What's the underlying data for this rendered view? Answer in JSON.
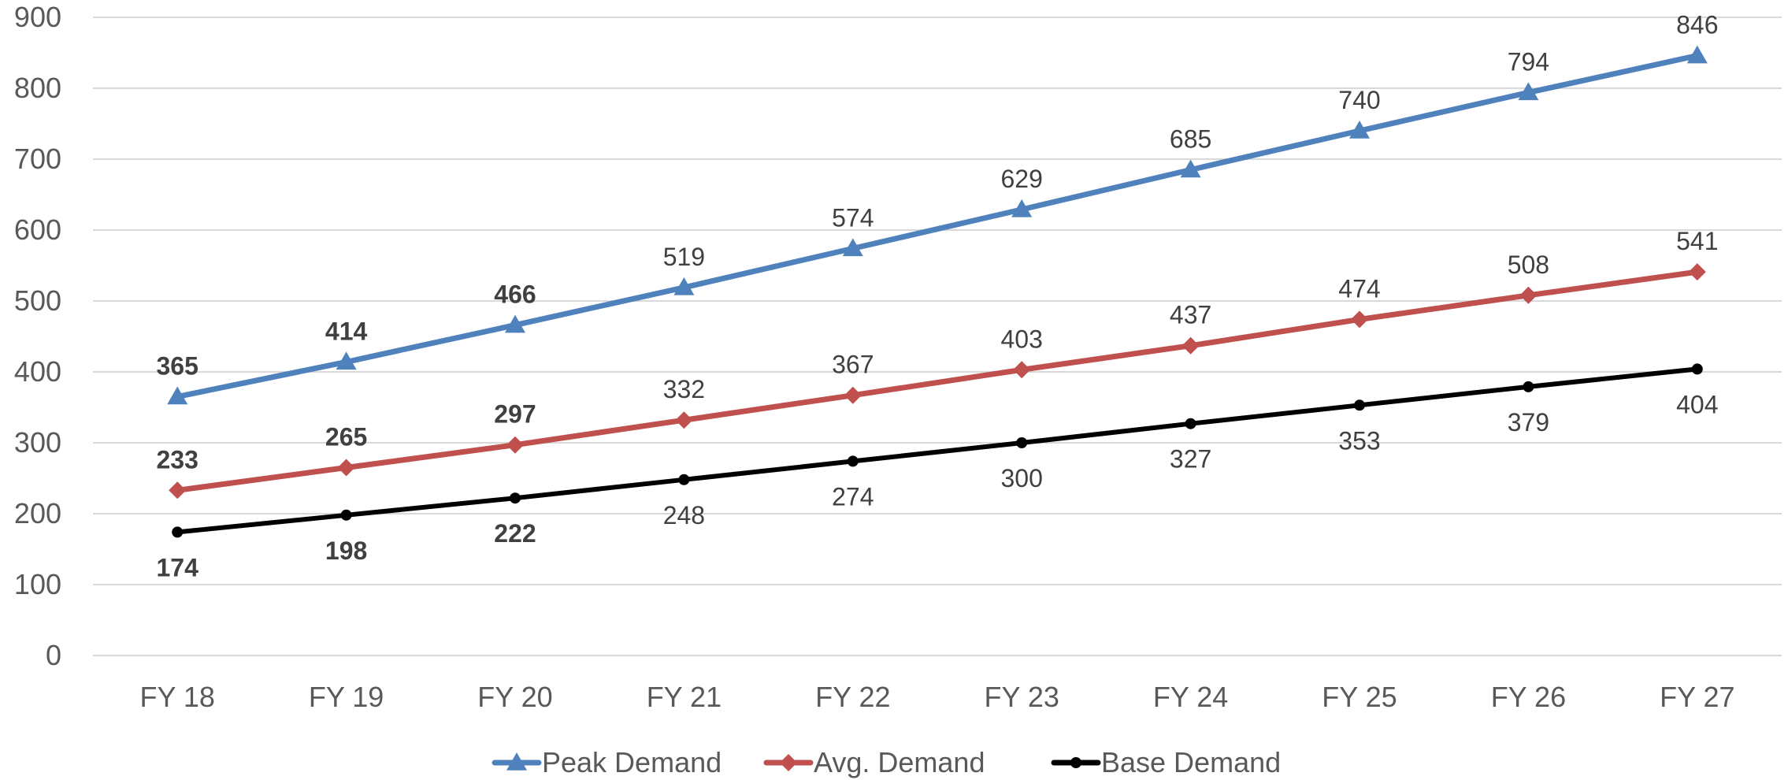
{
  "chart_data": {
    "type": "line",
    "categories": [
      "FY 18",
      "FY 19",
      "FY 20",
      "FY 21",
      "FY 22",
      "FY 23",
      "FY 24",
      "FY 25",
      "FY 26",
      "FY 27"
    ],
    "ylim": [
      0,
      900
    ],
    "yticks": [
      0,
      100,
      200,
      300,
      400,
      500,
      600,
      700,
      800,
      900
    ],
    "grid": true,
    "legend_position": "bottom",
    "series": [
      {
        "name": "Peak Demand",
        "values": [
          365,
          414,
          466,
          519,
          574,
          629,
          685,
          740,
          794,
          846
        ],
        "color": "#4f81bd",
        "marker": "triangle",
        "label_position": "above",
        "bold_labels": [
          true,
          true,
          true,
          false,
          false,
          false,
          false,
          false,
          false,
          false
        ]
      },
      {
        "name": "Avg. Demand",
        "values": [
          233,
          265,
          297,
          332,
          367,
          403,
          437,
          474,
          508,
          541
        ],
        "color": "#c0504d",
        "marker": "diamond",
        "label_position": "above",
        "bold_labels": [
          true,
          true,
          true,
          false,
          false,
          false,
          false,
          false,
          false,
          false
        ]
      },
      {
        "name": "Base Demand",
        "values": [
          174,
          198,
          222,
          248,
          274,
          300,
          327,
          353,
          379,
          404
        ],
        "color": "#000000",
        "marker": "circle",
        "label_position": "below",
        "bold_labels": [
          true,
          true,
          true,
          false,
          false,
          false,
          false,
          false,
          false,
          false
        ]
      }
    ]
  }
}
